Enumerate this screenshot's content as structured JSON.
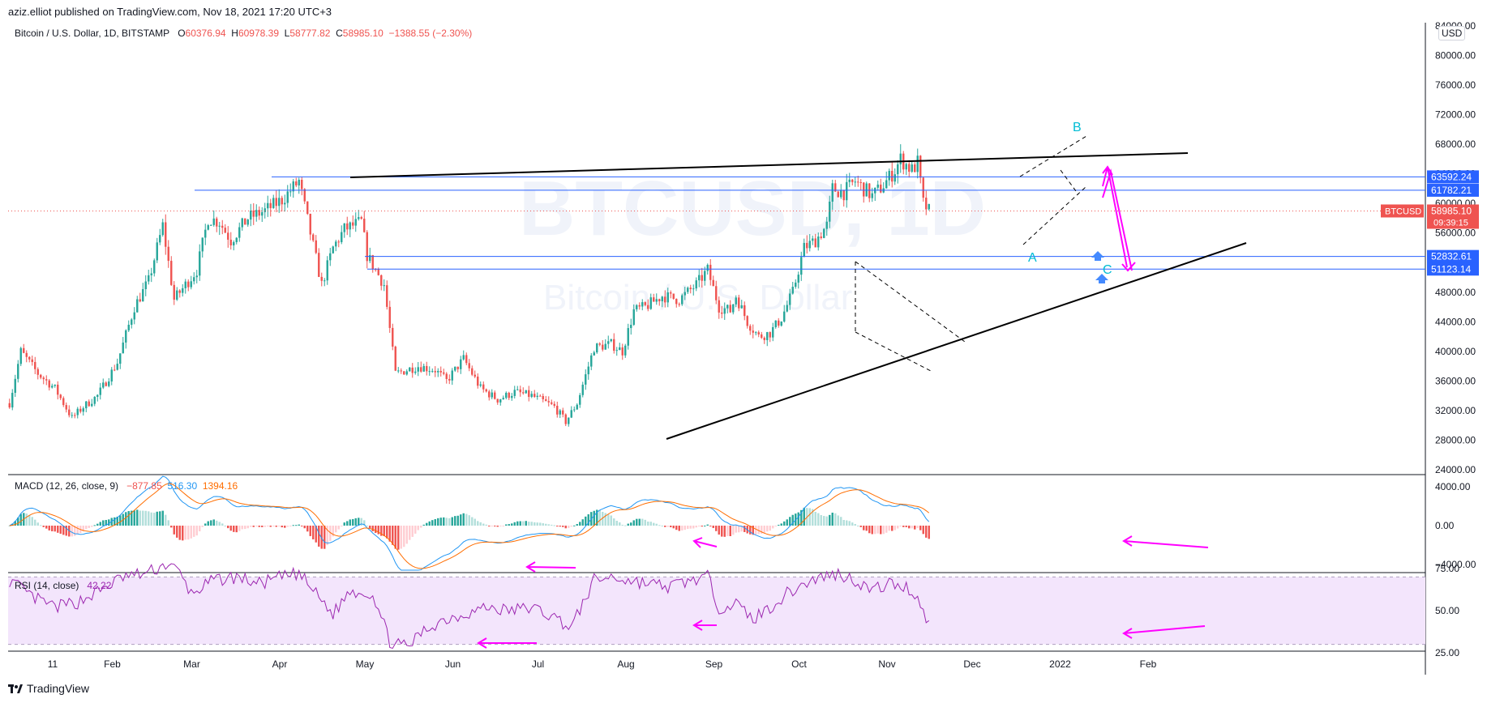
{
  "header": {
    "published": "aziz.elliot published on TradingView.com, Nov 18, 2021 17:20 UTC+3"
  },
  "legend": {
    "symbol": "Bitcoin / U.S. Dollar, 1D, BITSTAMP",
    "o_label": "O",
    "o": "60376.94",
    "h_label": "H",
    "h": "60978.39",
    "l_label": "L",
    "l": "58777.82",
    "c_label": "C",
    "c": "58985.10",
    "change": "−1388.55 (−2.30%)"
  },
  "watermark": {
    "main": "BTCUSD, 1D",
    "sub": "Bitcoin / U.S. Dollar"
  },
  "currency_button": "USD",
  "colors": {
    "up": "#26a69a",
    "down": "#ef5350",
    "hline": "#2962ff",
    "trend": "#000000",
    "arrow": "#ff00ff",
    "wave": "#00bcd4",
    "macd": "#2196f3",
    "signal": "#ff6d00",
    "rsi": "#9c27b0",
    "rsiband": "#f3e5fc"
  },
  "chart_data": [
    {
      "type": "line",
      "pane": "price",
      "ylim": [
        24000,
        84000
      ],
      "y_ticks": [
        "84000.00",
        "80000.00",
        "76000.00",
        "72000.00",
        "68000.00",
        "64000.00",
        "60000.00",
        "56000.00",
        "52000.00",
        "48000.00",
        "44000.00",
        "40000.00",
        "36000.00",
        "32000.00",
        "28000.00",
        "24000.00"
      ],
      "x_ticks": [
        "11",
        "Feb",
        "Mar",
        "Apr",
        "May",
        "Jun",
        "Jul",
        "Aug",
        "Sep",
        "Oct",
        "Nov",
        "Dec",
        "2022",
        "Feb"
      ],
      "x_tick_days": [
        10,
        31,
        59,
        90,
        120,
        151,
        181,
        212,
        243,
        273,
        304,
        334,
        365,
        396
      ],
      "series": [
        {
          "values_approx_by_day": [
            [
              0,
              33000
            ],
            [
              4,
              40000
            ],
            [
              10,
              37000
            ],
            [
              16,
              35000
            ],
            [
              22,
              31000
            ],
            [
              26,
              32500
            ],
            [
              31,
              34000
            ],
            [
              38,
              38500
            ],
            [
              44,
              46000
            ],
            [
              49,
              49500
            ],
            [
              54,
              57000
            ],
            [
              58,
              47000
            ],
            [
              62,
              49000
            ],
            [
              66,
              51000
            ],
            [
              70,
              58000
            ],
            [
              74,
              57500
            ],
            [
              78,
              55000
            ],
            [
              84,
              58000
            ],
            [
              90,
              59000
            ],
            [
              96,
              60500
            ],
            [
              102,
              63000
            ],
            [
              106,
              56000
            ],
            [
              110,
              49000
            ],
            [
              114,
              54000
            ],
            [
              118,
              56500
            ],
            [
              124,
              57500
            ],
            [
              126,
              53000
            ],
            [
              132,
              49000
            ],
            [
              136,
              37000
            ],
            [
              140,
              37500
            ],
            [
              144,
              38000
            ],
            [
              150,
              37500
            ],
            [
              154,
              36000
            ],
            [
              160,
              39000
            ],
            [
              166,
              35000
            ],
            [
              172,
              33500
            ],
            [
              178,
              34500
            ],
            [
              184,
              34000
            ],
            [
              192,
              32500
            ],
            [
              196,
              30500
            ],
            [
              200,
              33000
            ],
            [
              206,
              40500
            ],
            [
              212,
              41000
            ],
            [
              216,
              40000
            ],
            [
              220,
              45500
            ],
            [
              224,
              46000
            ],
            [
              230,
              47500
            ],
            [
              236,
              47000
            ],
            [
              242,
              49000
            ],
            [
              246,
              51000
            ],
            [
              250,
              46000
            ],
            [
              254,
              45500
            ],
            [
              256,
              47500
            ],
            [
              260,
              44000
            ],
            [
              264,
              42000
            ],
            [
              268,
              42500
            ],
            [
              272,
              44500
            ],
            [
              276,
              48000
            ],
            [
              280,
              54000
            ],
            [
              284,
              55000
            ],
            [
              288,
              57000
            ],
            [
              290,
              62000
            ],
            [
              294,
              61500
            ],
            [
              298,
              63000
            ],
            [
              304,
              61000
            ],
            [
              308,
              62500
            ],
            [
              312,
              64500
            ],
            [
              314,
              66000
            ],
            [
              318,
              64500
            ],
            [
              320,
              65500
            ],
            [
              322,
              60000
            ],
            [
              324,
              58985
            ]
          ]
        }
      ],
      "horizontal_levels": [
        {
          "value": 63592.24,
          "label": "63592.24"
        },
        {
          "value": 61782.21,
          "label": "61782.21"
        },
        {
          "value": 52832.61,
          "label": "52832.61"
        },
        {
          "value": 51123.14,
          "label": "51123.14"
        }
      ],
      "last_price": {
        "value": 58985.1,
        "label": "58985.10",
        "symbol": "BTCUSD",
        "countdown": "09:39:15"
      },
      "annotations": {
        "wave_a": "A",
        "wave_b": "B",
        "wave_c": "C"
      }
    },
    {
      "type": "line",
      "pane": "macd",
      "title": "MACD (12, 26, close, 9)",
      "values_shown": {
        "hist": "−877.85",
        "macd": "516.30",
        "signal": "1394.16"
      },
      "ylim": [
        -4500,
        5000
      ],
      "y_ticks": [
        "4000.00",
        "0.00",
        "−4000.00"
      ]
    },
    {
      "type": "line",
      "pane": "rsi",
      "title": "RSI (14, close)",
      "value_shown": "42.22",
      "ylim": [
        15,
        85
      ],
      "band": [
        30,
        70
      ],
      "y_ticks": [
        "75.00",
        "50.00",
        "25.00"
      ],
      "series": [
        {
          "values_approx_by_day": [
            [
              0,
              68
            ],
            [
              8,
              58
            ],
            [
              16,
              52
            ],
            [
              24,
              55
            ],
            [
              32,
              62
            ],
            [
              40,
              70
            ],
            [
              48,
              72
            ],
            [
              56,
              78
            ],
            [
              60,
              72
            ],
            [
              64,
              60
            ],
            [
              72,
              68
            ],
            [
              80,
              70
            ],
            [
              88,
              66
            ],
            [
              96,
              70
            ],
            [
              102,
              72
            ],
            [
              108,
              60
            ],
            [
              114,
              48
            ],
            [
              120,
              62
            ],
            [
              128,
              60
            ],
            [
              134,
              32
            ],
            [
              140,
              28
            ],
            [
              146,
              38
            ],
            [
              152,
              44
            ],
            [
              160,
              48
            ],
            [
              168,
              52
            ],
            [
              176,
              50
            ],
            [
              184,
              52
            ],
            [
              192,
              46
            ],
            [
              198,
              40
            ],
            [
              206,
              68
            ],
            [
              212,
              70
            ],
            [
              218,
              68
            ],
            [
              226,
              66
            ],
            [
              232,
              64
            ],
            [
              240,
              68
            ],
            [
              246,
              70
            ],
            [
              250,
              52
            ],
            [
              256,
              54
            ],
            [
              262,
              45
            ],
            [
              268,
              52
            ],
            [
              274,
              60
            ],
            [
              280,
              66
            ],
            [
              286,
              70
            ],
            [
              292,
              72
            ],
            [
              298,
              68
            ],
            [
              304,
              62
            ],
            [
              310,
              66
            ],
            [
              316,
              64
            ],
            [
              320,
              58
            ],
            [
              324,
              42
            ]
          ]
        }
      ]
    }
  ],
  "footer": {
    "brand": "TradingView"
  }
}
